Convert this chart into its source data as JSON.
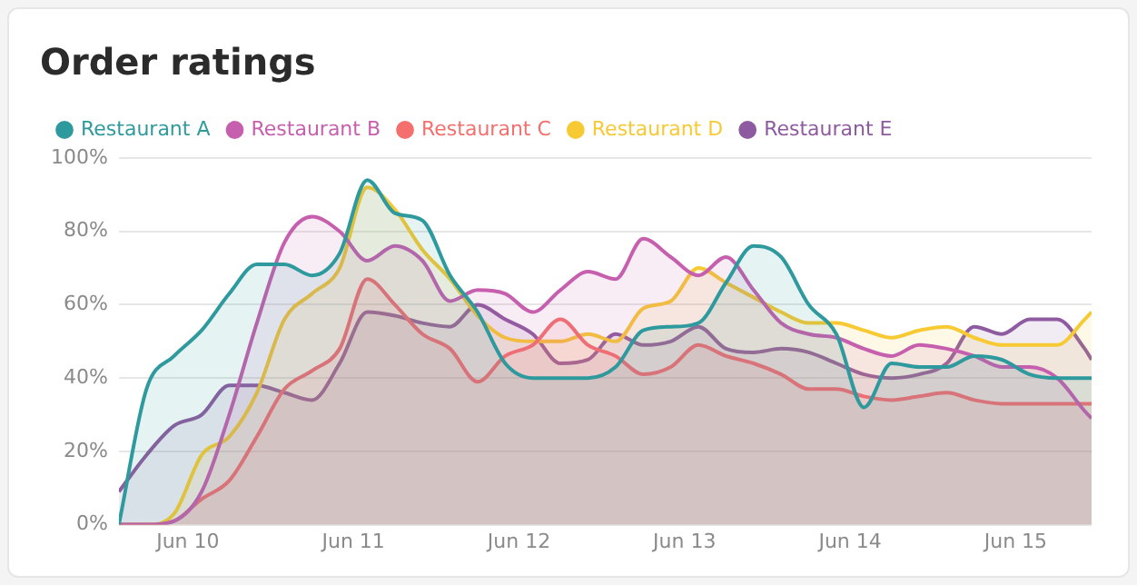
{
  "chart_data": {
    "type": "area",
    "title": "Order ratings",
    "x": [
      "--06-09T14:00",
      "--06-09T18:00",
      "--06-09T22:00",
      "--06-10T02:00",
      "--06-10T06:00",
      "--06-10T10:00",
      "--06-10T14:00",
      "--06-10T18:00",
      "--06-10T22:00",
      "--06-11T02:00",
      "--06-11T06:00",
      "--06-11T10:00",
      "--06-11T14:00",
      "--06-11T18:00",
      "--06-11T22:00",
      "--06-12T02:00",
      "--06-12T06:00",
      "--06-12T10:00",
      "--06-12T14:00",
      "--06-12T18:00",
      "--06-12T22:00",
      "--06-13T02:00",
      "--06-13T06:00",
      "--06-13T10:00",
      "--06-13T14:00",
      "--06-13T18:00",
      "--06-13T22:00",
      "--06-14T02:00",
      "--06-14T06:00",
      "--06-14T10:00",
      "--06-14T14:00",
      "--06-14T18:00",
      "--06-14T22:00",
      "--06-15T02:00",
      "--06-15T06:00",
      "--06-15T10:00",
      "--06-15T11:00"
    ],
    "series": [
      {
        "name": "Restaurant A",
        "color": "#2f9a9e",
        "values": [
          0,
          37,
          46,
          53,
          63,
          71,
          71,
          68,
          74,
          94,
          85,
          83,
          68,
          58,
          44,
          40,
          40,
          40,
          43,
          53,
          54,
          55,
          66,
          76,
          73,
          60,
          52,
          32,
          44,
          43,
          43,
          46,
          45,
          41,
          40,
          40,
          40
        ]
      },
      {
        "name": "Restaurant B",
        "color": "#c65fae",
        "values": [
          0,
          0,
          1,
          9,
          30,
          55,
          77,
          84,
          80,
          72,
          76,
          72,
          61,
          64,
          63,
          58,
          64,
          69,
          67,
          78,
          73,
          68,
          73,
          64,
          55,
          52,
          51,
          48,
          46,
          49,
          48,
          46,
          43,
          43,
          40,
          31,
          29
        ]
      },
      {
        "name": "Restaurant C",
        "color": "#f4706e",
        "values": [
          0,
          0,
          1,
          7,
          12,
          24,
          37,
          42,
          48,
          67,
          60,
          52,
          48,
          39,
          46,
          49,
          56,
          49,
          46,
          41,
          43,
          49,
          46,
          44,
          41,
          37,
          37,
          35,
          34,
          35,
          36,
          34,
          33,
          33,
          33,
          33,
          33
        ]
      },
      {
        "name": "Restaurant D",
        "color": "#f7c933",
        "values": [
          0,
          0,
          3,
          19,
          24,
          36,
          56,
          63,
          70,
          92,
          86,
          75,
          67,
          57,
          51,
          50,
          50,
          52,
          50,
          59,
          61,
          70,
          66,
          62,
          58,
          55,
          55,
          53,
          51,
          53,
          54,
          51,
          49,
          49,
          49,
          56,
          58
        ]
      },
      {
        "name": "Restaurant E",
        "color": "#8e5ba0",
        "values": [
          9,
          19,
          27,
          30,
          38,
          38,
          36,
          34,
          44,
          58,
          57,
          55,
          54,
          60,
          56,
          52,
          44,
          45,
          52,
          49,
          50,
          54,
          48,
          47,
          48,
          47,
          44,
          41,
          40,
          41,
          44,
          54,
          52,
          56,
          56,
          48,
          45
        ]
      }
    ],
    "xlim": [
      "--06-09T14:00",
      "--06-15T11:00"
    ],
    "xticks": [
      {
        "value": "--06-10",
        "label": "Jun 10"
      },
      {
        "value": "--06-11",
        "label": "Jun 11"
      },
      {
        "value": "--06-12",
        "label": "Jun 12"
      },
      {
        "value": "--06-13",
        "label": "Jun 13"
      },
      {
        "value": "--06-14",
        "label": "Jun 14"
      },
      {
        "value": "--06-15",
        "label": "Jun 15"
      }
    ],
    "ylim": [
      0,
      100
    ],
    "yticks": [
      {
        "value": 0,
        "label": "0%"
      },
      {
        "value": 20,
        "label": "20%"
      },
      {
        "value": 40,
        "label": "40%"
      },
      {
        "value": 60,
        "label": "60%"
      },
      {
        "value": 80,
        "label": "80%"
      },
      {
        "value": 100,
        "label": "100%"
      }
    ],
    "grid": "y",
    "legend": "top left",
    "marker": "none",
    "line_style": "solid"
  }
}
